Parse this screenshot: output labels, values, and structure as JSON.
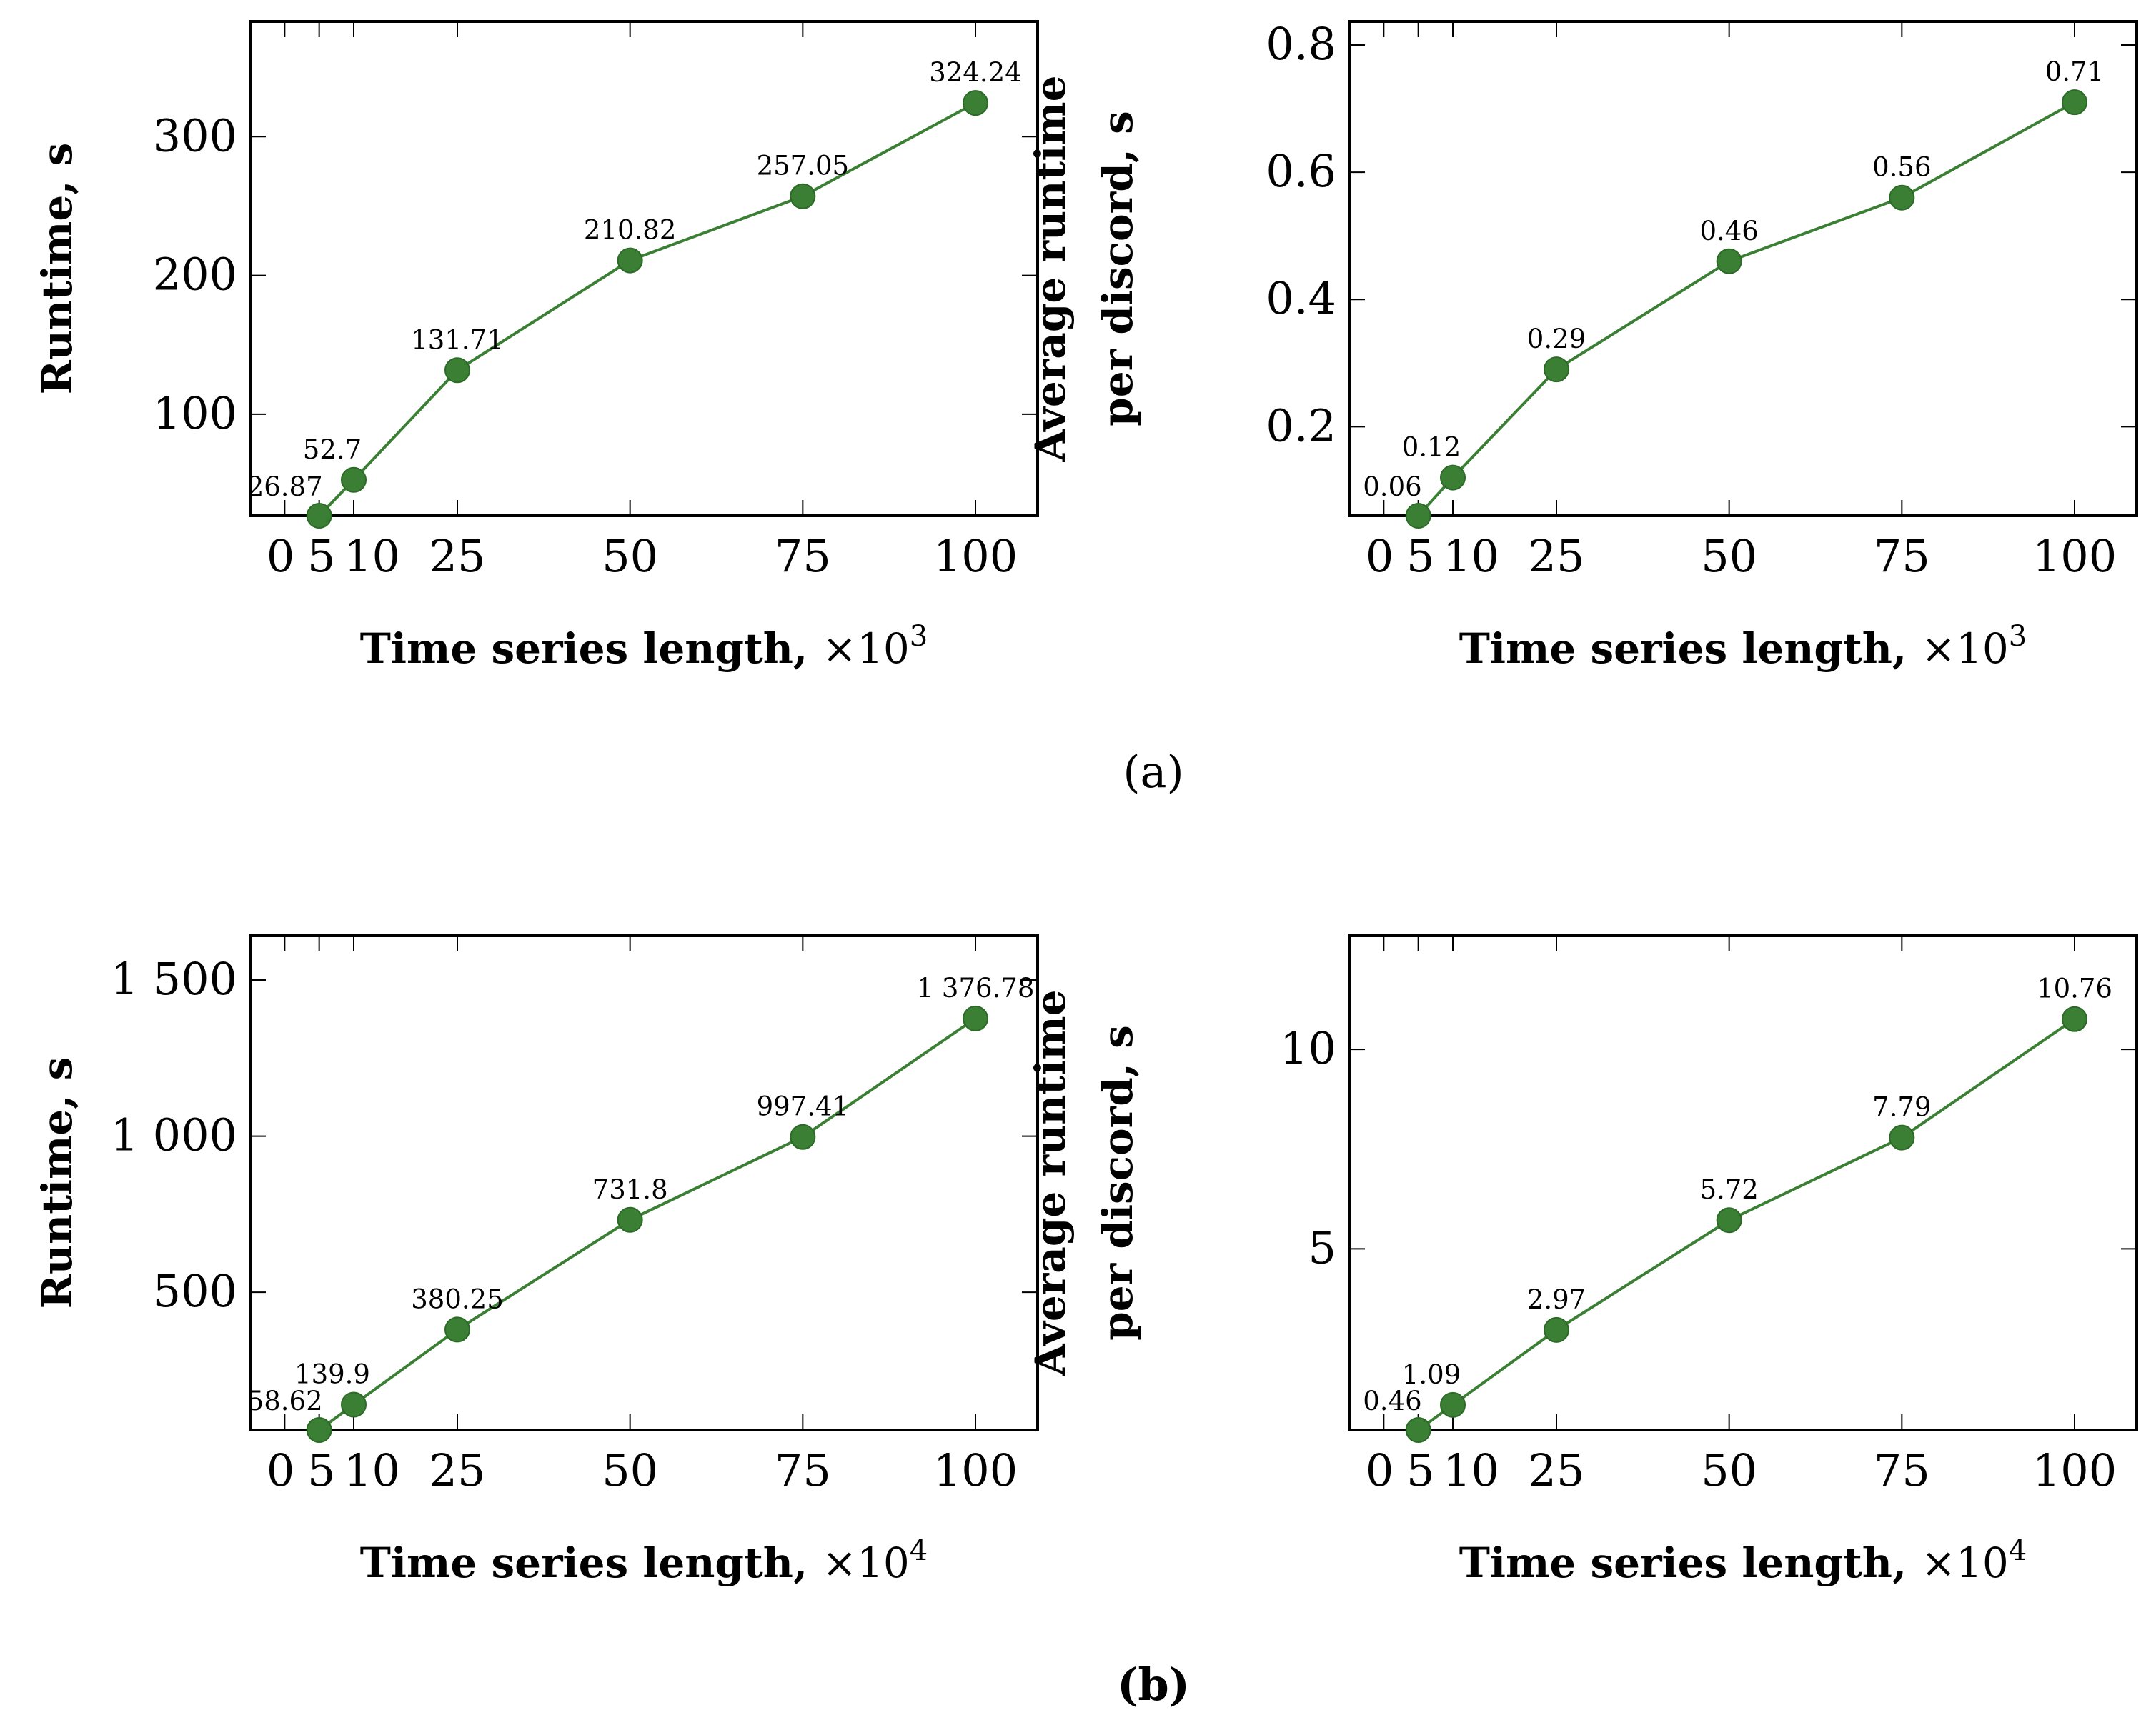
{
  "captions": [
    "(a)",
    "(b)"
  ],
  "chart_data": [
    {
      "type": "line",
      "panel": "a-left",
      "x": [
        5,
        10,
        25,
        50,
        75,
        100
      ],
      "values": [
        26.87,
        52.7,
        131.71,
        210.82,
        257.05,
        324.24
      ],
      "data_labels": [
        "26.87",
        "52.7",
        "131.71",
        "210.82",
        "257.05",
        "324.24"
      ],
      "xticks": [
        0,
        5,
        10,
        25,
        50,
        75,
        100
      ],
      "xtick_labels": [
        "0",
        "5",
        "10",
        "25",
        "50",
        "75",
        "100"
      ],
      "yticks": [
        100,
        200,
        300
      ],
      "ytick_labels": [
        "100",
        "200",
        "300"
      ],
      "xlim": [
        -5,
        109
      ],
      "ylim": [
        26.87,
        383
      ],
      "xlabel_text": "Time series length,",
      "xlabel_scale": "×10",
      "xlabel_exp": "3",
      "ylabel_lines": [
        "Runtime, s"
      ],
      "color": "#3a7f34"
    },
    {
      "type": "line",
      "panel": "a-right",
      "x": [
        5,
        10,
        25,
        50,
        75,
        100
      ],
      "values": [
        0.06,
        0.12,
        0.29,
        0.46,
        0.56,
        0.71
      ],
      "data_labels": [
        "0.06",
        "0.12",
        "0.29",
        "0.46",
        "0.56",
        "0.71"
      ],
      "xticks": [
        0,
        5,
        10,
        25,
        50,
        75,
        100
      ],
      "xtick_labels": [
        "0",
        "5",
        "10",
        "25",
        "50",
        "75",
        "100"
      ],
      "yticks": [
        0.2,
        0.4,
        0.6,
        0.8
      ],
      "ytick_labels": [
        "0.2",
        "0.4",
        "0.6",
        "0.8"
      ],
      "xlim": [
        -5,
        109
      ],
      "ylim": [
        0.06,
        0.837
      ],
      "xlabel_text": "Time series length,",
      "xlabel_scale": "×10",
      "xlabel_exp": "3",
      "ylabel_lines": [
        "Average runtime",
        "per discord, s"
      ],
      "color": "#3a7f34"
    },
    {
      "type": "line",
      "panel": "b-left",
      "x": [
        5,
        10,
        25,
        50,
        75,
        100
      ],
      "values": [
        58.62,
        139.9,
        380.25,
        731.8,
        997.41,
        1376.78
      ],
      "data_labels": [
        "58.62",
        "139.9",
        "380.25",
        "731.8",
        "997.41",
        "1 376.78"
      ],
      "xticks": [
        0,
        5,
        10,
        25,
        50,
        75,
        100
      ],
      "xtick_labels": [
        "0",
        "5",
        "10",
        "25",
        "50",
        "75",
        "100"
      ],
      "yticks": [
        500,
        1000,
        1500
      ],
      "ytick_labels": [
        "500",
        "1 000",
        "1 500"
      ],
      "xlim": [
        -5,
        109
      ],
      "ylim": [
        58.62,
        1642
      ],
      "xlabel_text": "Time series length,",
      "xlabel_scale": "×10",
      "xlabel_exp": "4",
      "ylabel_lines": [
        "Runtime, s"
      ],
      "color": "#3a7f34"
    },
    {
      "type": "line",
      "panel": "b-right",
      "x": [
        5,
        10,
        25,
        50,
        75,
        100
      ],
      "values": [
        0.46,
        1.09,
        2.97,
        5.72,
        7.79,
        10.76
      ],
      "data_labels": [
        "0.46",
        "1.09",
        "2.97",
        "5.72",
        "7.79",
        "10.76"
      ],
      "xticks": [
        0,
        5,
        10,
        25,
        50,
        75,
        100
      ],
      "xtick_labels": [
        "0",
        "5",
        "10",
        "25",
        "50",
        "75",
        "100"
      ],
      "yticks": [
        5,
        10
      ],
      "ytick_labels": [
        "5",
        "10"
      ],
      "xlim": [
        -5,
        109
      ],
      "ylim": [
        0.46,
        12.85
      ],
      "xlabel_text": "Time series length,",
      "xlabel_scale": "×10",
      "xlabel_exp": "4",
      "ylabel_lines": [
        "Average runtime",
        "per discord, s"
      ],
      "color": "#3a7f34"
    }
  ]
}
